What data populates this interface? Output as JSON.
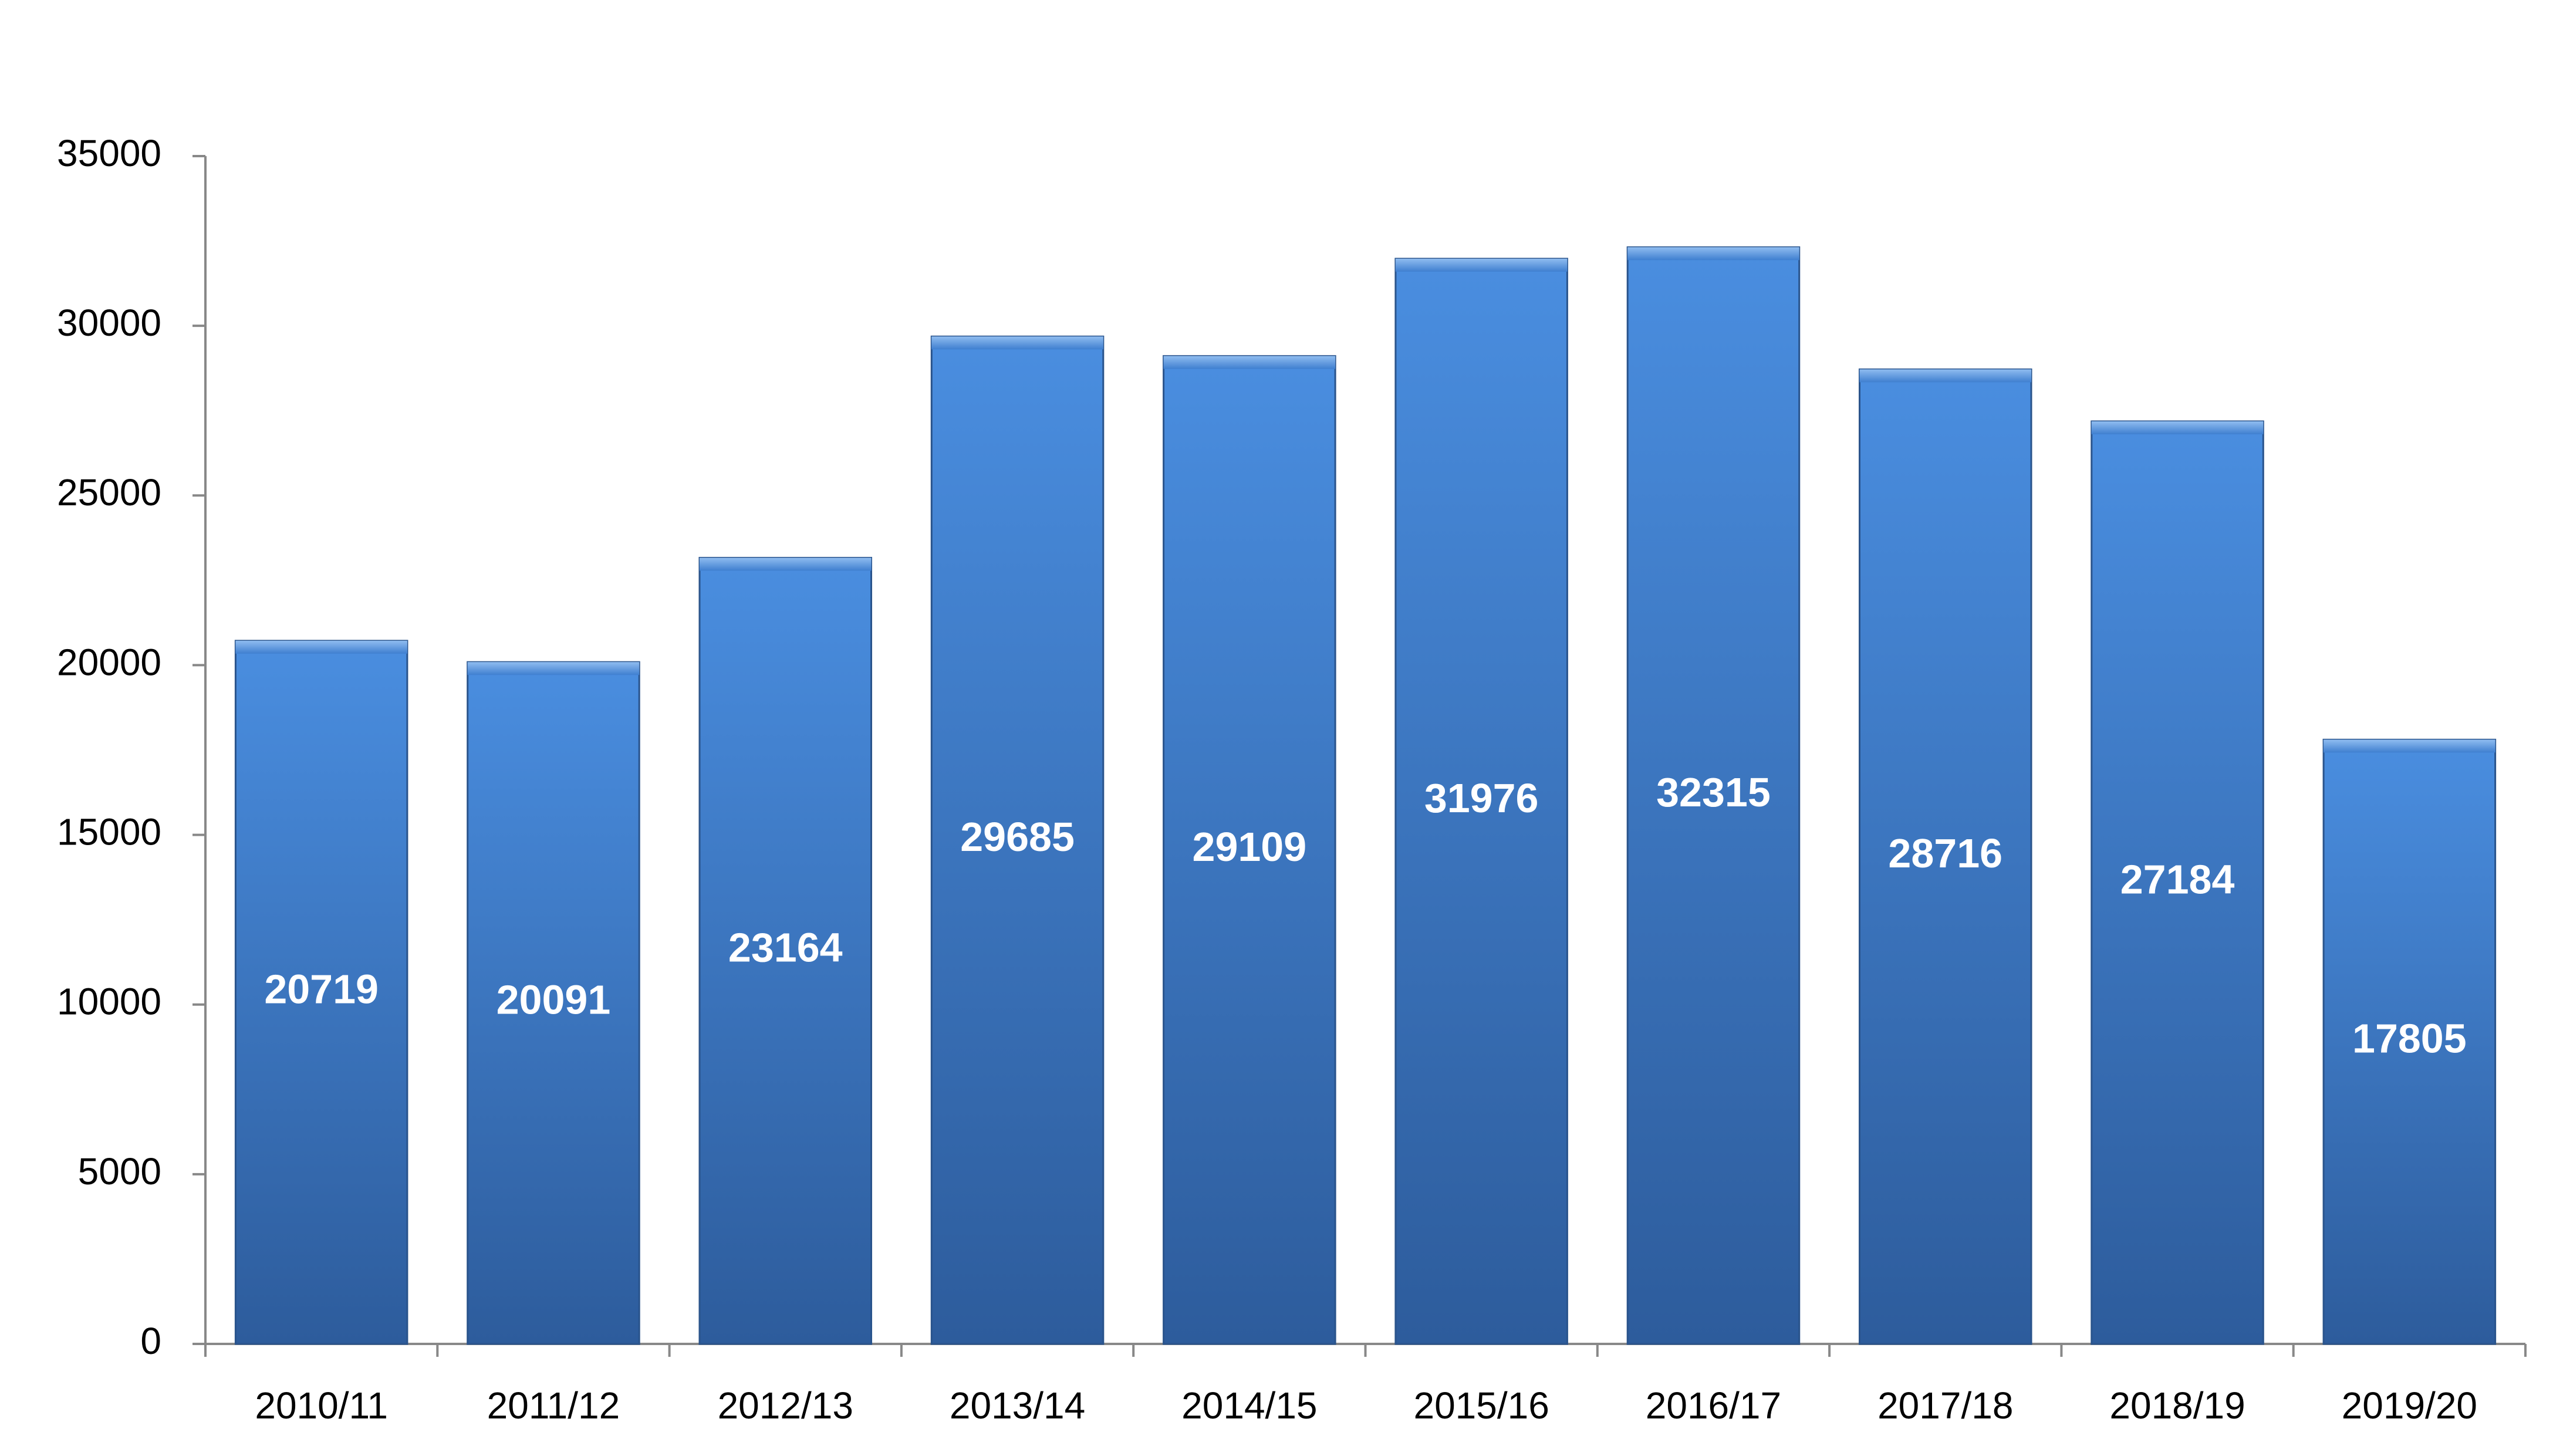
{
  "chart_data": {
    "type": "bar",
    "categories": [
      "2010/11",
      "2011/12",
      "2012/13",
      "2013/14",
      "2014/15",
      "2015/16",
      "2016/17",
      "2017/18",
      "2018/19",
      "2019/20"
    ],
    "values": [
      20719,
      20091,
      23164,
      29685,
      29109,
      31976,
      32315,
      28716,
      27184,
      17805
    ],
    "color": "#3a7bd0",
    "ylim": [
      0,
      35000
    ],
    "yticks": [
      0,
      5000,
      10000,
      15000,
      20000,
      25000,
      30000,
      35000
    ],
    "grid": false
  }
}
